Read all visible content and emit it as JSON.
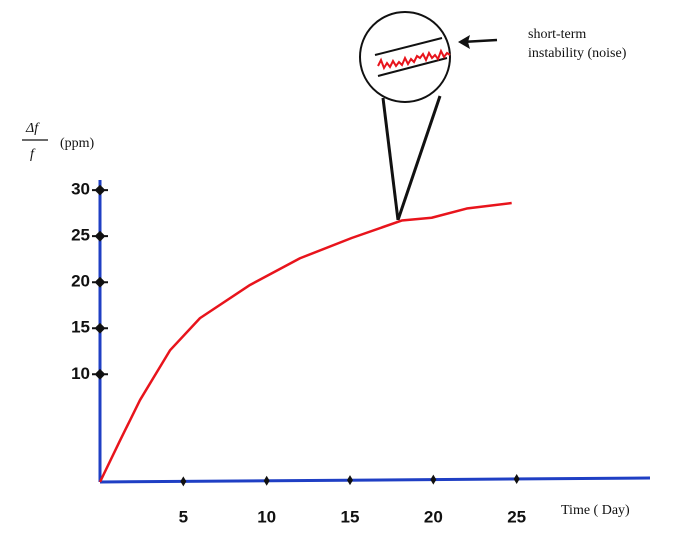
{
  "chart_data": {
    "type": "line",
    "y_label_numerator": "Δf",
    "y_label_denominator": "f",
    "y_label_unit": "(ppm)",
    "x_label": "Time ( Day)",
    "annotation": [
      "short-term",
      "instability  (noise)"
    ],
    "x": [
      0,
      1.2,
      2.4,
      4.2,
      6.0,
      9.0,
      12.0,
      15.1,
      18.1,
      19.9,
      22.0,
      24.7
    ],
    "values": [
      -1.7,
      2.8,
      7.2,
      12.6,
      16.1,
      19.7,
      22.6,
      24.8,
      26.7,
      27.0,
      28.0,
      28.6
    ],
    "color": "#e8141c",
    "axis_color": "#1f3fc4",
    "xlim": [
      0,
      33
    ],
    "ylim": [
      -1.7,
      31.1
    ],
    "xticks": [
      5,
      10,
      15,
      20,
      25
    ],
    "yticks": [
      10,
      15,
      20,
      25,
      30
    ]
  }
}
